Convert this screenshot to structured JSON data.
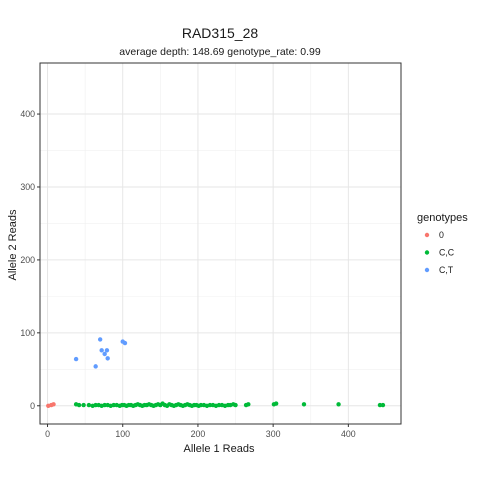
{
  "chart_data": {
    "type": "scatter",
    "title": "RAD315_28",
    "subtitle": "average depth:  148.69  genotype_rate:  0.99",
    "xlabel": "Allele 1 Reads",
    "ylabel": "Allele 2 Reads",
    "xlim": [
      -10,
      470
    ],
    "ylim": [
      -25,
      470
    ],
    "xticks": [
      0,
      100,
      200,
      300,
      400
    ],
    "yticks": [
      0,
      100,
      200,
      300,
      400
    ],
    "grid": true,
    "legend": {
      "title": "genotypes",
      "position": "right"
    },
    "series": [
      {
        "name": "0",
        "color": "#F8766D",
        "points": [
          [
            1,
            0
          ],
          [
            5,
            1
          ],
          [
            8,
            2
          ]
        ]
      },
      {
        "name": "C,C",
        "color": "#00BA38",
        "points": [
          [
            38,
            2
          ],
          [
            42,
            1
          ],
          [
            48,
            1
          ],
          [
            55,
            1
          ],
          [
            60,
            0
          ],
          [
            64,
            1
          ],
          [
            68,
            1
          ],
          [
            72,
            0
          ],
          [
            76,
            1
          ],
          [
            80,
            1
          ],
          [
            84,
            0
          ],
          [
            88,
            1
          ],
          [
            92,
            1
          ],
          [
            96,
            0
          ],
          [
            99,
            1
          ],
          [
            102,
            1
          ],
          [
            105,
            0
          ],
          [
            108,
            1
          ],
          [
            111,
            1
          ],
          [
            114,
            0
          ],
          [
            117,
            1
          ],
          [
            120,
            2
          ],
          [
            123,
            1
          ],
          [
            126,
            0
          ],
          [
            129,
            1
          ],
          [
            132,
            1
          ],
          [
            135,
            2
          ],
          [
            138,
            1
          ],
          [
            141,
            0
          ],
          [
            144,
            1
          ],
          [
            147,
            2
          ],
          [
            150,
            1
          ],
          [
            153,
            3
          ],
          [
            156,
            1
          ],
          [
            159,
            0
          ],
          [
            162,
            2
          ],
          [
            165,
            1
          ],
          [
            168,
            0
          ],
          [
            171,
            1
          ],
          [
            174,
            2
          ],
          [
            177,
            1
          ],
          [
            180,
            0
          ],
          [
            183,
            1
          ],
          [
            186,
            2
          ],
          [
            189,
            1
          ],
          [
            192,
            0
          ],
          [
            195,
            1
          ],
          [
            198,
            1
          ],
          [
            201,
            0
          ],
          [
            204,
            1
          ],
          [
            208,
            1
          ],
          [
            212,
            0
          ],
          [
            216,
            1
          ],
          [
            220,
            1
          ],
          [
            224,
            0
          ],
          [
            228,
            1
          ],
          [
            232,
            1
          ],
          [
            236,
            0
          ],
          [
            240,
            1
          ],
          [
            243,
            1
          ],
          [
            247,
            2
          ],
          [
            250,
            1
          ],
          [
            264,
            1
          ],
          [
            267,
            2
          ],
          [
            301,
            2
          ],
          [
            304,
            3
          ],
          [
            341,
            2
          ],
          [
            387,
            2
          ],
          [
            442,
            1
          ],
          [
            446,
            1
          ]
        ]
      },
      {
        "name": "C,T",
        "color": "#619CFF",
        "points": [
          [
            38,
            64
          ],
          [
            64,
            54
          ],
          [
            70,
            91
          ],
          [
            72,
            76
          ],
          [
            76,
            71
          ],
          [
            79,
            76
          ],
          [
            80,
            65
          ],
          [
            100,
            88
          ],
          [
            103,
            86
          ]
        ]
      }
    ]
  }
}
